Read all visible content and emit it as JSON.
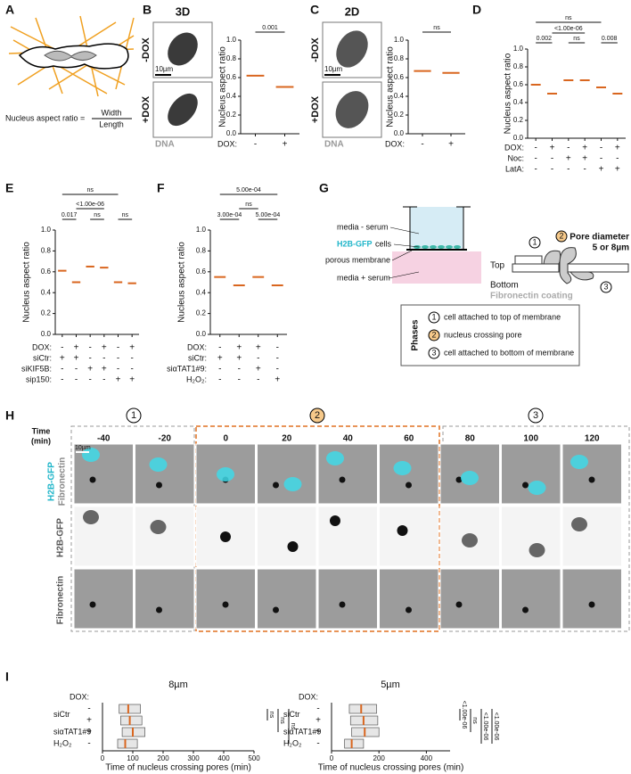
{
  "panel_a": {
    "letter": "A",
    "formula_label": "Nucleus aspect ratio =",
    "numerator": "Width",
    "denominator": "Length"
  },
  "panel_b": {
    "letter": "B",
    "title": "3D",
    "images": [
      "-DOX",
      "+DOX"
    ],
    "scale_bar": "10µm",
    "stain": "DNA"
  },
  "panel_c": {
    "letter": "C",
    "title": "2D",
    "images": [
      "-DOX",
      "+DOX"
    ],
    "scale_bar": "10µm",
    "stain": "DNA"
  },
  "panel_d": {
    "letter": "D"
  },
  "panel_e": {
    "letter": "E"
  },
  "panel_f": {
    "letter": "F"
  },
  "panel_g": {
    "letter": "G",
    "media_top": "media - serum",
    "cells": "H2B-GFP",
    "cells_suffix": "cells",
    "membrane": "porous membrane",
    "media_bottom": "media + serum",
    "top": "Top",
    "bottom": "Bottom",
    "coating": "Fibronectin coating",
    "pore": [
      "Pore diameter",
      "5 or 8µm"
    ],
    "phases_title": "Phases",
    "phases": [
      {
        "number": "1",
        "label": "cell attached to top of membrane"
      },
      {
        "number": "2",
        "label": "nucleus crossing pore"
      },
      {
        "number": "3",
        "label": "cell attached to bottom of membrane"
      }
    ]
  },
  "panel_h": {
    "letter": "H",
    "time_label": [
      "Time",
      "(min)"
    ],
    "times": [
      -40,
      -20,
      0,
      20,
      40,
      60,
      80,
      100,
      120
    ],
    "phases": [
      "1",
      "2",
      "3"
    ],
    "merge_labels": [
      "H2B-GFP",
      "Fibronectin"
    ],
    "rows": [
      "H2B-GFP",
      "Fibronectin"
    ],
    "scale_bar": "10µm"
  },
  "panel_i": {
    "letter": "I"
  },
  "chart_data": [
    {
      "type": "strip",
      "y_label": "Nucleus aspect ratio",
      "ylim": [
        0,
        1
      ],
      "yticks": [
        {
          "value": 0,
          "label": "0.0"
        },
        0.2,
        0.4,
        0.6,
        0.8,
        {
          "value": 1,
          "label": "1.0"
        }
      ],
      "values": [
        0.62,
        0.5
      ],
      "color": "#d9661f",
      "rows": [
        {
          "label": "DOX:",
          "values": [
            "-",
            "+"
          ]
        }
      ],
      "annotations": [
        "0.001"
      ]
    },
    {
      "type": "strip",
      "y_label": "Nucleus aspect ratio",
      "ylim": [
        0,
        1
      ],
      "yticks": [
        {
          "value": 0,
          "label": "0.0"
        },
        0.2,
        0.4,
        0.6,
        0.8,
        {
          "value": 1,
          "label": "1.0"
        }
      ],
      "values": [
        0.67,
        0.65
      ],
      "color": "#d9661f",
      "rows": [
        {
          "label": "DOX:",
          "values": [
            "-",
            "+"
          ]
        }
      ],
      "annotations": [
        "ns"
      ]
    },
    {
      "type": "strip",
      "y_label": "Nucleus aspect ratio",
      "ylim": [
        0,
        1
      ],
      "yticks": [
        {
          "value": 0,
          "label": "0.0"
        },
        0.2,
        0.4,
        0.6,
        0.8,
        {
          "value": 1,
          "label": "1.0"
        }
      ],
      "values": [
        0.6,
        0.5,
        0.65,
        0.65,
        0.57,
        0.5
      ],
      "color": "#d9661f",
      "rows": [
        {
          "label": "DOX:",
          "values": [
            "-",
            "+",
            "-",
            "+",
            "-",
            "+"
          ]
        },
        {
          "label": "Noc:",
          "values": [
            "-",
            "-",
            "+",
            "+",
            "-",
            "-"
          ]
        },
        {
          "label": "LatA:",
          "values": [
            "-",
            "-",
            "-",
            "-",
            "+",
            "+"
          ]
        }
      ],
      "annotations": [
        "0.002",
        "<1.00e-06",
        "ns",
        "0.008",
        "ns"
      ]
    },
    {
      "type": "strip",
      "y_label": "Nucleus aspect ratio",
      "ylim": [
        0,
        1
      ],
      "yticks": [
        {
          "value": 0,
          "label": "0.0"
        },
        0.2,
        0.4,
        0.6,
        0.8,
        {
          "value": 1,
          "label": "1.0"
        }
      ],
      "values": [
        0.61,
        0.5,
        0.65,
        0.64,
        0.5,
        0.49
      ],
      "color": "#d9661f",
      "rows": [
        {
          "label": "DOX:",
          "values": [
            "-",
            "+",
            "-",
            "+",
            "-",
            "+"
          ]
        },
        {
          "label": "siCtr:",
          "values": [
            "+",
            "+",
            "-",
            "-",
            "-",
            "-"
          ]
        },
        {
          "label": "siKIF5B:",
          "values": [
            "-",
            "-",
            "+",
            "+",
            "-",
            "-"
          ]
        },
        {
          "label": "sip150:",
          "values": [
            "-",
            "-",
            "-",
            "-",
            "+",
            "+"
          ]
        }
      ],
      "annotations": [
        "0.017",
        "<1.00e-06",
        "ns",
        "ns",
        "ns"
      ]
    },
    {
      "type": "strip",
      "y_label": "Nucleus aspect ratio",
      "ylim": [
        0,
        1
      ],
      "yticks": [
        {
          "value": 0,
          "label": "0.0"
        },
        0.2,
        0.4,
        0.6,
        0.8,
        {
          "value": 1,
          "label": "1.0"
        }
      ],
      "values": [
        0.55,
        0.47,
        0.55,
        0.47
      ],
      "color": "#d9661f",
      "rows": [
        {
          "label": "DOX:",
          "values": [
            "-",
            "+",
            "+",
            "-"
          ]
        },
        {
          "label": "siCtr:",
          "values": [
            "+",
            "+",
            "-",
            "-"
          ]
        },
        {
          "label": "siαTAT1#9:",
          "values": [
            "-",
            "-",
            "+",
            "-"
          ]
        },
        {
          "label": "H₂O₂:",
          "values": [
            "-",
            "-",
            "-",
            "+"
          ]
        }
      ],
      "annotations": [
        "3.00e-04",
        "ns",
        "5.00e-04",
        "5.00e-04"
      ]
    },
    {
      "type": "box",
      "title": "8µm",
      "x_label": "Time of nucleus crossing pores (min)",
      "xlim": [
        0,
        500
      ],
      "xticks": [
        0,
        100,
        200,
        300,
        400,
        500
      ],
      "row_header": "DOX:",
      "dox": [
        "-",
        "+",
        "+",
        "-"
      ],
      "groups": [
        "siCtr",
        "siαTAT1#9",
        "H₂O₂"
      ],
      "values": [
        85,
        90,
        100,
        75
      ],
      "q1": [
        55,
        60,
        65,
        50
      ],
      "q3": [
        125,
        130,
        140,
        115
      ],
      "color": "#d9661f",
      "annotations": [
        "ns",
        "ns",
        "ns"
      ]
    },
    {
      "type": "box",
      "title": "5µm",
      "x_label": "Time of nucleus crossing pores (min)",
      "xlim": [
        0,
        500
      ],
      "xticks": [
        0,
        200,
        400
      ],
      "row_header": "DOX:",
      "dox": [
        "-",
        "+",
        "+",
        "-"
      ],
      "groups": [
        "siCtr",
        "siαTAT1#9",
        "H₂O₂"
      ],
      "values": [
        125,
        135,
        140,
        85
      ],
      "q1": [
        75,
        80,
        85,
        55
      ],
      "q3": [
        190,
        195,
        200,
        135
      ],
      "color": "#d9661f",
      "annotations": [
        "<1.00e-06",
        "ns",
        "<1.00e-06",
        "<1.00e-06"
      ]
    }
  ]
}
